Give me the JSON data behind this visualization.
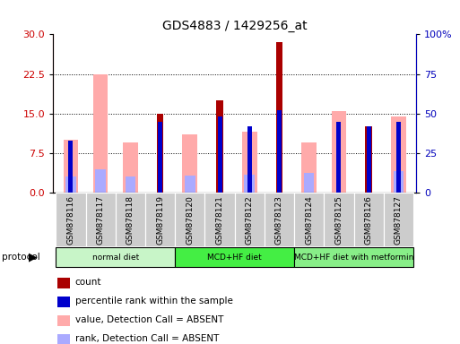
{
  "title": "GDS4883 / 1429256_at",
  "samples": [
    "GSM878116",
    "GSM878117",
    "GSM878118",
    "GSM878119",
    "GSM878120",
    "GSM878121",
    "GSM878122",
    "GSM878123",
    "GSM878124",
    "GSM878125",
    "GSM878126",
    "GSM878127"
  ],
  "count": [
    0,
    0,
    0,
    15.0,
    0,
    17.5,
    0,
    28.5,
    0,
    0,
    12.5,
    0
  ],
  "percentile": [
    33,
    0,
    0,
    45,
    0,
    48,
    42,
    52,
    0,
    45,
    42,
    45
  ],
  "value_absent": [
    10.0,
    22.5,
    9.5,
    0,
    11.0,
    0,
    11.5,
    0,
    9.5,
    15.5,
    0,
    14.5
  ],
  "rank_absent": [
    10.0,
    15.0,
    10.0,
    0,
    11.0,
    0,
    11.5,
    0,
    12.5,
    0,
    0,
    13.5
  ],
  "ylim_left": [
    0,
    30
  ],
  "ylim_right": [
    0,
    100
  ],
  "yticks_left": [
    0,
    7.5,
    15,
    22.5,
    30
  ],
  "yticks_right": [
    0,
    25,
    50,
    75,
    100
  ],
  "protocol_groups": [
    {
      "label": "normal diet",
      "start": 0,
      "end": 3,
      "color": "#c8f5c8"
    },
    {
      "label": "MCD+HF diet",
      "start": 4,
      "end": 7,
      "color": "#44ee44"
    },
    {
      "label": "MCD+HF diet with metformin",
      "start": 8,
      "end": 11,
      "color": "#88ee88"
    }
  ],
  "protocol_label": "protocol",
  "color_count": "#aa0000",
  "color_percentile": "#0000cc",
  "color_value_absent": "#ffaaaa",
  "color_rank_absent": "#aaaaff",
  "legend_items": [
    "count",
    "percentile rank within the sample",
    "value, Detection Call = ABSENT",
    "rank, Detection Call = ABSENT"
  ],
  "left_label_color": "#cc0000",
  "right_label_color": "#0000bb",
  "xticklabel_bg": "#cccccc"
}
